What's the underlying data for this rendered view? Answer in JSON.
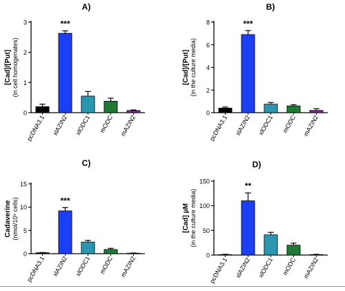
{
  "colors": {
    "pcDNA3.1": "#000000",
    "xlAZIN2": "#1b3ff5",
    "xlODC1": "#2a96b0",
    "mODC": "#1e7a36",
    "mAZIN2": "#7b2d8e"
  },
  "chart_data": [
    {
      "type": "bar",
      "panel": "A)",
      "title": "A)",
      "ylabel": "[Cad]/[Put]",
      "ylabel2": "(in cell homogenates)",
      "ylim": [
        0,
        3
      ],
      "yticks": [
        "0",
        "1",
        "2",
        "3"
      ],
      "categories": [
        "pcDNA3.1",
        "xlAZIN2",
        "xlODC1",
        "mODC",
        "mAZIN2"
      ],
      "values": [
        0.2,
        2.63,
        0.55,
        0.38,
        0.07
      ],
      "errors": [
        0.08,
        0.08,
        0.15,
        0.1,
        0.02
      ],
      "annotations": [
        {
          "category": "xlAZIN2",
          "text": "***"
        }
      ]
    },
    {
      "type": "bar",
      "panel": "B)",
      "title": "B)",
      "ylabel": "[Cad]/[Put]",
      "ylabel2": "(in the culture media)",
      "ylim": [
        0,
        8
      ],
      "yticks": [
        "0",
        "2",
        "4",
        "6",
        "8"
      ],
      "categories": [
        "pcDNA3.1",
        "xlAZIN2",
        "xlODC1",
        "mODC",
        "mAZIN2"
      ],
      "values": [
        0.4,
        6.9,
        0.75,
        0.6,
        0.2
      ],
      "errors": [
        0.1,
        0.35,
        0.15,
        0.1,
        0.15
      ],
      "annotations": [
        {
          "category": "xlAZIN2",
          "text": "***"
        }
      ]
    },
    {
      "type": "bar",
      "panel": "C)",
      "title": "C)",
      "ylabel": "Cadaverine",
      "ylabel2": "(nmol/10⁶ cells)",
      "ylim": [
        0,
        15
      ],
      "yticks": [
        "0",
        "5",
        "10",
        "15"
      ],
      "categories": [
        "pcDNA3.1",
        "xlAZIN2",
        "xlODC1",
        "mODC",
        "mAZIN2"
      ],
      "values": [
        0.2,
        9.2,
        2.5,
        0.9,
        0.1
      ],
      "errors": [
        0.05,
        0.7,
        0.35,
        0.25,
        0.05
      ],
      "annotations": [
        {
          "category": "xlAZIN2",
          "text": "***"
        }
      ]
    },
    {
      "type": "bar",
      "panel": "D)",
      "title": "D)",
      "ylabel": "[Cad]  μM",
      "ylabel2": "(in the culture media)",
      "ylim": [
        0,
        150
      ],
      "yticks": [
        "0",
        "50",
        "100",
        "150"
      ],
      "categories": [
        "pcDNA3.1",
        "xlAZIN2",
        "xlODC1",
        "mODC",
        "mAZIN2"
      ],
      "values": [
        1,
        110,
        41,
        20,
        1
      ],
      "errors": [
        0.5,
        16,
        5,
        4,
        0.5
      ],
      "annotations": [
        {
          "category": "xlAZIN2",
          "text": "**"
        }
      ]
    }
  ]
}
